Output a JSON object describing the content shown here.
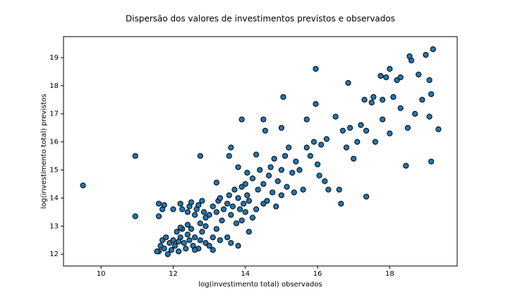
{
  "chart_data": {
    "type": "scatter",
    "title": "Dispersão dos valores de investimentos previstos e observados",
    "xlabel": "log(investimento total) observados",
    "ylabel": "log(investimento total) previstos",
    "color": "#1f77b4",
    "edgecolor": "#000000",
    "xlim": [
      8.96,
      19.87
    ],
    "ylim": [
      11.58,
      19.75
    ],
    "xticks": [
      10,
      12,
      14,
      16,
      18
    ],
    "yticks": [
      12,
      13,
      14,
      15,
      16,
      17,
      18,
      19
    ],
    "x": [
      11.6,
      11.65,
      11.7,
      11.75,
      11.8,
      11.9,
      11.95,
      12.0,
      12.05,
      12.1,
      12.15,
      12.2,
      12.25,
      12.3,
      12.35,
      12.4,
      12.45,
      12.5,
      12.55,
      12.6,
      12.7,
      12.75,
      12.8,
      12.9,
      13.0,
      13.1,
      13.2,
      13.3,
      13.5,
      13.6,
      13.8,
      11.85,
      12.15,
      12.6,
      13.1,
      11.55,
      11.6,
      11.7,
      11.6,
      11.75,
      12.0,
      12.2,
      12.25,
      12.4,
      12.45,
      12.5,
      12.6,
      12.65,
      12.7,
      12.8,
      12.85,
      12.9,
      12.75,
      12.9,
      13.0,
      13.1,
      13.2,
      13.25,
      13.3,
      13.35,
      13.4,
      13.5,
      13.55,
      13.6,
      13.65,
      13.7,
      13.75,
      13.8,
      13.85,
      13.9,
      13.9,
      13.95,
      14.0,
      14.0,
      14.05,
      14.1,
      14.1,
      14.2,
      14.2,
      14.3,
      14.35,
      14.4,
      14.5,
      14.5,
      14.6,
      14.65,
      14.7,
      14.75,
      14.8,
      14.85,
      14.9,
      15.0,
      15.0,
      15.1,
      15.15,
      15.2,
      15.3,
      15.35,
      15.4,
      15.5,
      15.6,
      15.7,
      15.8,
      15.9,
      16.0,
      16.05,
      16.1,
      16.2,
      16.3,
      16.25,
      16.5,
      16.6,
      16.7,
      16.8,
      16.9,
      17.0,
      17.1,
      17.2,
      17.3,
      17.35,
      17.5,
      17.6,
      17.8,
      17.9,
      18.0,
      18.1,
      18.2,
      18.3,
      18.5,
      18.6,
      18.7,
      18.8,
      18.9,
      19.0,
      19.1,
      19.15,
      19.2,
      19.1,
      18.0,
      18.3,
      18.55,
      17.75,
      17.55,
      17.8,
      16.85,
      15.05,
      15.7,
      14.5,
      14.55,
      13.9,
      14.3,
      13.6,
      13.55,
      13.8,
      14.05,
      15.95,
      15.0,
      13.2,
      12.4,
      12.2,
      9.5,
      10.95,
      10.95,
      12.75,
      15.95,
      19.35,
      19.15,
      18.45,
      17.35,
      16.65
    ],
    "y": [
      12.1,
      12.3,
      12.5,
      12.2,
      12.6,
      12.4,
      12.15,
      12.5,
      12.3,
      12.8,
      12.1,
      12.6,
      12.9,
      12.4,
      12.2,
      12.7,
      12.5,
      12.9,
      12.3,
      12.6,
      12.2,
      12.5,
      12.8,
      12.4,
      12.3,
      12.6,
      12.9,
      12.5,
      12.6,
      12.4,
      12.3,
      12.0,
      12.45,
      12.15,
      12.15,
      12.1,
      13.8,
      13.6,
      13.35,
      13.75,
      13.6,
      13.8,
      13.6,
      13.5,
      13.7,
      13.85,
      13.4,
      13.6,
      13.75,
      13.9,
      13.5,
      13.3,
      13.1,
      13.0,
      13.4,
      13.7,
      13.5,
      13.9,
      14.0,
      13.2,
      13.6,
      13.8,
      14.1,
      13.4,
      13.7,
      14.3,
      13.1,
      14.0,
      13.6,
      14.4,
      13.2,
      13.8,
      14.5,
      13.5,
      14.1,
      13.9,
      12.8,
      13.3,
      14.7,
      13.6,
      14.3,
      15.0,
      13.8,
      14.5,
      13.9,
      14.8,
      15.1,
      14.2,
      15.4,
      13.7,
      14.6,
      15.0,
      14.1,
      15.5,
      14.4,
      15.8,
      14.9,
      14.2,
      15.3,
      15.0,
      14.3,
      15.8,
      15.5,
      16.0,
      15.2,
      14.8,
      15.9,
      14.6,
      14.3,
      16.1,
      16.9,
      14.3,
      16.4,
      15.8,
      16.5,
      15.4,
      16.0,
      16.6,
      17.5,
      16.4,
      17.4,
      16.0,
      16.8,
      18.3,
      16.3,
      17.6,
      18.2,
      17.2,
      16.5,
      18.9,
      17.0,
      18.4,
      17.5,
      19.1,
      18.2,
      17.7,
      19.3,
      16.9,
      18.6,
      18.3,
      19.05,
      18.35,
      17.6,
      17.5,
      18.1,
      17.6,
      16.8,
      16.8,
      16.4,
      16.8,
      15.55,
      15.8,
      15.5,
      15.1,
      14.9,
      17.35,
      16.5,
      14.55,
      13.05,
      12.95,
      14.45,
      15.5,
      13.35,
      15.5,
      18.6,
      16.45,
      15.3,
      15.15,
      14.05,
      13.8
    ]
  }
}
